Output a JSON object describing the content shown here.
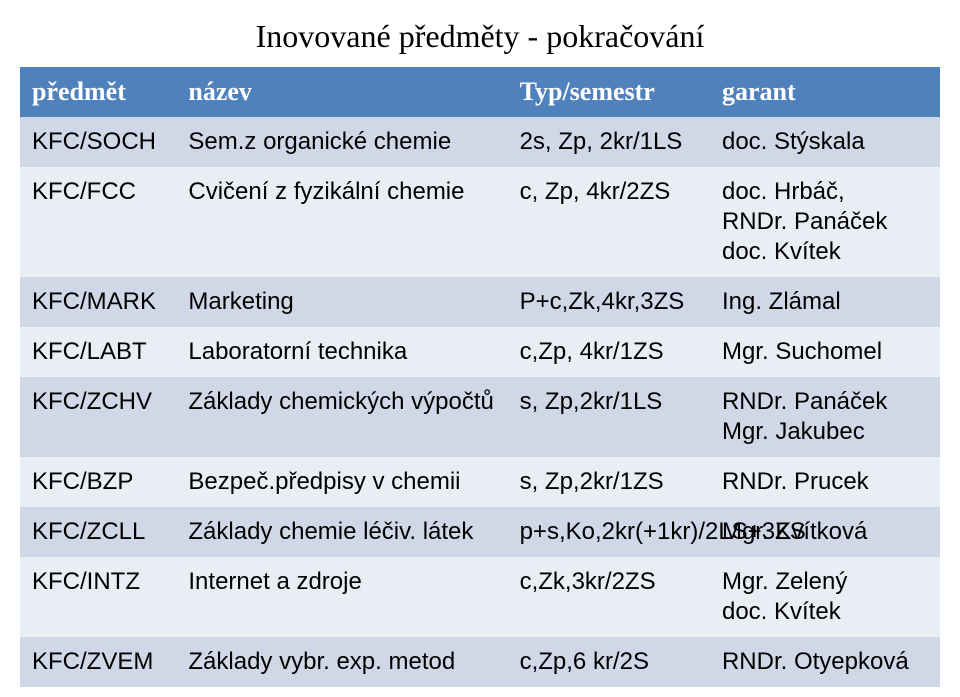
{
  "title": "Inovované předměty - pokračování",
  "columns": [
    "předmět",
    "název",
    "Typ/semestr",
    "garant"
  ],
  "rows": [
    {
      "c0": "KFC/SOCH",
      "c1": "Sem.z organické chemie",
      "c2": "2s, Zp, 2kr/1LS",
      "c3": "doc. Stýskala"
    },
    {
      "c0": "KFC/FCC",
      "c1": "Cvičení z fyzikální chemie",
      "c2": "c, Zp, 4kr/2ZS",
      "c3": "doc. Hrbáč,\nRNDr. Panáček\ndoc. Kvítek"
    },
    {
      "c0": "KFC/MARK",
      "c1": "Marketing",
      "c2": "P+c,Zk,4kr,3ZS",
      "c3": "Ing. Zlámal"
    },
    {
      "c0": "KFC/LABT",
      "c1": "Laboratorní technika",
      "c2": "c,Zp, 4kr/1ZS",
      "c3": "Mgr. Suchomel"
    },
    {
      "c0": "KFC/ZCHV",
      "c1": "Základy chemických výpočtů",
      "c2": "s, Zp,2kr/1LS",
      "c3": "RNDr. Panáček\nMgr. Jakubec"
    },
    {
      "c0": "KFC/BZP",
      "c1": "Bezpeč.předpisy v chemii",
      "c2": "s, Zp,2kr/1ZS",
      "c3": "RNDr. Prucek"
    },
    {
      "c0": "KFC/ZCLL",
      "c1": "Základy chemie léčiv. látek",
      "c2": "p+s,Ko,2kr(+1kr)/2LS+3ZS",
      "c3": "Mgr. Kvítková"
    },
    {
      "c0": "KFC/INTZ",
      "c1": "Internet a zdroje",
      "c2": "c,Zk,3kr/2ZS",
      "c3": "Mgr. Zelený\ndoc. Kvítek"
    },
    {
      "c0": "KFC/ZVEM",
      "c1": "Základy vybr. exp. metod",
      "c2": "c,Zp,6 kr/2S",
      "c3": "RNDr. Otyepková"
    }
  ],
  "style": {
    "header_bg": "#4f81bd",
    "header_fg": "#ffffff",
    "odd_bg": "#d0d8e8",
    "even_bg": "#e9edf4",
    "title_fontsize": 32,
    "header_fontsize": 26,
    "cell_fontsize": 24,
    "col_widths_pct": [
      17,
      36,
      22,
      25
    ]
  }
}
